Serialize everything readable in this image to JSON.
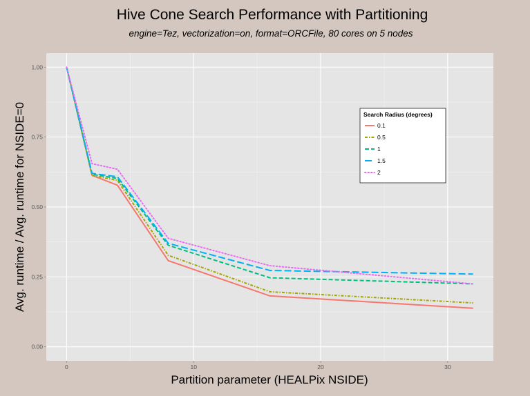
{
  "chart_data": {
    "type": "line",
    "title": "Hive Cone Search Performance with Partitioning",
    "subtitle": "engine=Tez, vectorization=on, format=ORCFile, 80 cores on 5 nodes",
    "xlabel": "Partition parameter (HEALPix NSIDE)",
    "ylabel": "Avg. runtime / Avg. runtime for NSIDE=0",
    "xlim": [
      -1.6,
      33.6
    ],
    "ylim": [
      -0.05,
      1.05
    ],
    "x_ticks": [
      0,
      10,
      20,
      30
    ],
    "x_tick_labels": [
      "0",
      "10",
      "20",
      "30"
    ],
    "y_ticks": [
      0,
      0.25,
      0.5,
      0.75,
      1.0
    ],
    "y_tick_labels": [
      "0.00",
      "0.25",
      "0.50",
      "0.75",
      "1.00"
    ],
    "grid": true,
    "legend_position": "top-right",
    "legend_title": "Search Radius (degrees)",
    "x": [
      0,
      2,
      4,
      8,
      16,
      32
    ],
    "series": [
      {
        "name": "0.1",
        "color": "#f8766d",
        "dash": "solid",
        "values": [
          1.0,
          0.613,
          0.578,
          0.308,
          0.182,
          0.138
        ]
      },
      {
        "name": "0.5",
        "color": "#a3a500",
        "dash": "dotted-dash",
        "values": [
          1.0,
          0.613,
          0.595,
          0.327,
          0.197,
          0.157
        ]
      },
      {
        "name": "1",
        "color": "#00bf7d",
        "dash": "dashed",
        "values": [
          1.0,
          0.617,
          0.602,
          0.363,
          0.247,
          0.225
        ]
      },
      {
        "name": "1.5",
        "color": "#00b0f6",
        "dash": "longdash",
        "values": [
          1.0,
          0.62,
          0.608,
          0.37,
          0.273,
          0.26
        ]
      },
      {
        "name": "2",
        "color": "#e76bf3",
        "dash": "dotted",
        "values": [
          1.0,
          0.655,
          0.635,
          0.388,
          0.29,
          0.225
        ]
      }
    ]
  }
}
